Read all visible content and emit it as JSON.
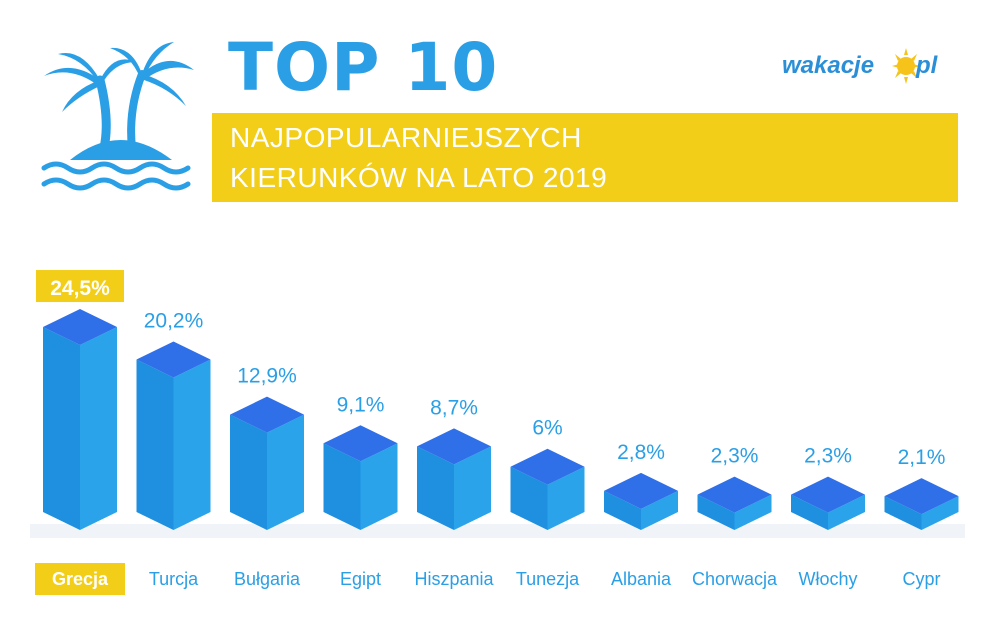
{
  "header": {
    "title": "TOP 10",
    "subtitle_line1": "NAJPOPULARNIEJSZYCH",
    "subtitle_line2": "KIERUNKÓW NA LATO 2019"
  },
  "logo": {
    "text_left": "wakacje",
    "text_right": "pl"
  },
  "colors": {
    "bar_front": "#1f8fe0",
    "bar_side": "#2aa3ea",
    "bar_top": "#2f6fe8",
    "label_blue": "#2a9fe6",
    "highlight": "#f2ce19"
  },
  "chart_data": {
    "type": "bar",
    "categories": [
      "Grecja",
      "Turcja",
      "Bułgaria",
      "Egipt",
      "Hiszpania",
      "Tunezja",
      "Albania",
      "Chorwacja",
      "Włochy",
      "Cypr"
    ],
    "values": [
      24.5,
      20.2,
      12.9,
      9.1,
      8.7,
      6,
      2.8,
      2.3,
      2.3,
      2.1
    ],
    "value_labels": [
      "24,5%",
      "20,2%",
      "12,9%",
      "9,1%",
      "8,7%",
      "6%",
      "2,8%",
      "2,3%",
      "2,3%",
      "2,1%"
    ],
    "highlighted_category": "Grecja",
    "unit": "%"
  }
}
